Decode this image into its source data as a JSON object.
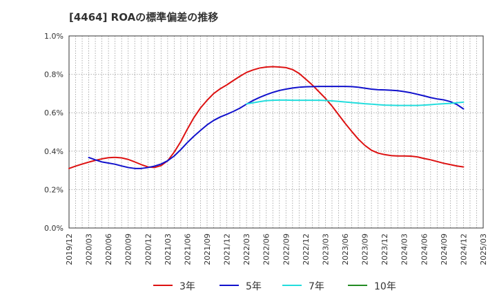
{
  "chart_data": {
    "type": "line",
    "title": "[4464]  ROAの標準偏差の推移",
    "xlabel": "",
    "ylabel": "",
    "ylim": [
      0.0,
      1.0
    ],
    "yticks": [
      "0.0%",
      "0.2%",
      "0.4%",
      "0.6%",
      "0.8%",
      "1.0%"
    ],
    "yvalues": [
      0.0,
      0.2,
      0.4,
      0.6,
      0.8,
      1.0
    ],
    "xticks": [
      "2019/12",
      "2020/03",
      "2020/06",
      "2020/09",
      "2020/12",
      "2021/03",
      "2021/06",
      "2021/09",
      "2021/12",
      "2022/03",
      "2022/06",
      "2022/09",
      "2022/12",
      "2023/03",
      "2023/06",
      "2023/09",
      "2023/12",
      "2024/03",
      "2024/06",
      "2024/09",
      "2024/12",
      "2025/03"
    ],
    "grid": true,
    "legend_position": "bottom",
    "series": [
      {
        "name": "3年",
        "color": "#dd1111",
        "x": [
          "2019/12",
          "2020/01",
          "2020/02",
          "2020/03",
          "2020/04",
          "2020/05",
          "2020/06",
          "2020/07",
          "2020/08",
          "2020/09",
          "2020/10",
          "2020/11",
          "2020/12",
          "2021/01",
          "2021/02",
          "2021/03",
          "2021/04",
          "2021/05",
          "2021/06",
          "2021/07",
          "2021/08",
          "2021/09",
          "2021/10",
          "2021/11",
          "2021/12",
          "2022/01",
          "2022/02",
          "2022/03",
          "2022/04",
          "2022/05",
          "2022/06",
          "2022/07",
          "2022/08",
          "2022/09",
          "2022/10",
          "2022/11",
          "2022/12",
          "2023/01",
          "2023/02",
          "2023/03",
          "2023/04",
          "2023/05",
          "2023/06",
          "2023/07",
          "2023/08",
          "2023/09",
          "2023/10",
          "2023/11",
          "2023/12",
          "2024/01",
          "2024/02",
          "2024/03",
          "2024/04",
          "2024/05",
          "2024/06",
          "2024/07",
          "2024/08",
          "2024/09",
          "2024/10",
          "2024/11",
          "2024/12"
        ],
        "values": [
          0.31,
          0.322,
          0.333,
          0.343,
          0.352,
          0.36,
          0.366,
          0.368,
          0.365,
          0.357,
          0.344,
          0.33,
          0.318,
          0.315,
          0.325,
          0.35,
          0.395,
          0.45,
          0.515,
          0.575,
          0.625,
          0.665,
          0.7,
          0.725,
          0.745,
          0.768,
          0.79,
          0.81,
          0.823,
          0.833,
          0.838,
          0.84,
          0.838,
          0.835,
          0.825,
          0.805,
          0.775,
          0.745,
          0.71,
          0.675,
          0.635,
          0.59,
          0.545,
          0.503,
          0.463,
          0.43,
          0.405,
          0.39,
          0.382,
          0.377,
          0.375,
          0.375,
          0.374,
          0.37,
          0.362,
          0.355,
          0.346,
          0.337,
          0.33,
          0.323,
          0.318
        ]
      },
      {
        "name": "5年",
        "color": "#1111cc",
        "x": [
          "2020/03",
          "2020/04",
          "2020/05",
          "2020/06",
          "2020/07",
          "2020/08",
          "2020/09",
          "2020/10",
          "2020/11",
          "2020/12",
          "2021/01",
          "2021/02",
          "2021/03",
          "2021/04",
          "2021/05",
          "2021/06",
          "2021/07",
          "2021/08",
          "2021/09",
          "2021/10",
          "2021/11",
          "2021/12",
          "2022/01",
          "2022/02",
          "2022/03",
          "2022/04",
          "2022/05",
          "2022/06",
          "2022/07",
          "2022/08",
          "2022/09",
          "2022/10",
          "2022/11",
          "2022/12",
          "2023/01",
          "2023/02",
          "2023/03",
          "2023/04",
          "2023/05",
          "2023/06",
          "2023/07",
          "2023/08",
          "2023/09",
          "2023/10",
          "2023/11",
          "2023/12",
          "2024/01",
          "2024/02",
          "2024/03",
          "2024/04",
          "2024/05",
          "2024/06",
          "2024/07",
          "2024/08",
          "2024/09",
          "2024/10",
          "2024/11",
          "2024/12"
        ],
        "values": [
          0.367,
          0.355,
          0.344,
          0.338,
          0.332,
          0.323,
          0.315,
          0.31,
          0.31,
          0.315,
          0.322,
          0.333,
          0.35,
          0.375,
          0.408,
          0.445,
          0.478,
          0.508,
          0.537,
          0.56,
          0.578,
          0.592,
          0.607,
          0.624,
          0.645,
          0.664,
          0.68,
          0.694,
          0.706,
          0.716,
          0.723,
          0.729,
          0.733,
          0.735,
          0.736,
          0.737,
          0.737,
          0.737,
          0.737,
          0.737,
          0.736,
          0.733,
          0.728,
          0.723,
          0.72,
          0.719,
          0.717,
          0.715,
          0.71,
          0.704,
          0.696,
          0.688,
          0.679,
          0.672,
          0.667,
          0.658,
          0.643,
          0.62
        ]
      },
      {
        "name": "7年",
        "color": "#22dddd",
        "x": [
          "2022/03",
          "2022/04",
          "2022/05",
          "2022/06",
          "2022/07",
          "2022/08",
          "2022/09",
          "2022/10",
          "2022/11",
          "2022/12",
          "2023/01",
          "2023/02",
          "2023/03",
          "2023/04",
          "2023/05",
          "2023/06",
          "2023/07",
          "2023/08",
          "2023/09",
          "2023/10",
          "2023/11",
          "2023/12",
          "2024/01",
          "2024/02",
          "2024/03",
          "2024/04",
          "2024/05",
          "2024/06",
          "2024/07",
          "2024/08",
          "2024/09",
          "2024/10",
          "2024/11",
          "2024/12"
        ],
        "values": [
          0.646,
          0.652,
          0.658,
          0.663,
          0.665,
          0.666,
          0.666,
          0.665,
          0.665,
          0.665,
          0.665,
          0.665,
          0.664,
          0.662,
          0.659,
          0.656,
          0.653,
          0.65,
          0.647,
          0.645,
          0.642,
          0.64,
          0.639,
          0.638,
          0.638,
          0.638,
          0.638,
          0.64,
          0.642,
          0.645,
          0.647,
          0.649,
          0.652,
          0.655
        ]
      },
      {
        "name": "10年",
        "color": "#228b22",
        "x": [],
        "values": []
      }
    ]
  }
}
